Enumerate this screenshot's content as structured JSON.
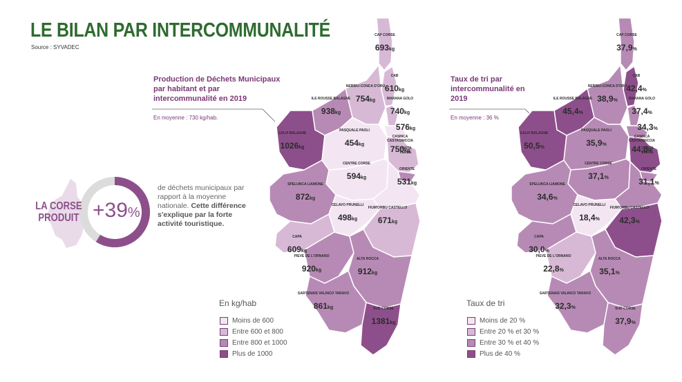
{
  "title": "LE BILAN PAR INTERCOMMUNALITÉ",
  "source": "Source : SYVADEC",
  "map_left": {
    "title": "Production de Déchets Municipaux par habitant et par intercommunalité en 2019",
    "average": "En moyenne : 730 kg/hab.",
    "unit": "kg",
    "regions": [
      {
        "name": "CAP CORSE",
        "value": "693"
      },
      {
        "name": "CAB",
        "value": "610"
      },
      {
        "name": "NEBBIU-CONCA D'ORU",
        "value": "754"
      },
      {
        "name": "MARANA GOLO",
        "value": "740"
      },
      {
        "name": "",
        "value": "576"
      },
      {
        "name": "ILE ROUSSE BALAGNE",
        "value": "938"
      },
      {
        "name": "CALVI BALAGNE",
        "value": "1026"
      },
      {
        "name": "PASQUALE PAOLI",
        "value": "454"
      },
      {
        "name": "CASINCA CASTAGNICCIA",
        "value": "750"
      },
      {
        "name": "COSTA VERDE",
        "value": ""
      },
      {
        "name": "CENTRE CORSE",
        "value": "594"
      },
      {
        "name": "ORIENTE",
        "value": "531"
      },
      {
        "name": "SPELUNCA LIAMONE",
        "value": "872"
      },
      {
        "name": "CELAVO PRUNELLI",
        "value": "498"
      },
      {
        "name": "FIUM'ORBU CASTELLO",
        "value": "671"
      },
      {
        "name": "CAPA",
        "value": "609"
      },
      {
        "name": "PIEVE DE L'ORNANO",
        "value": "920"
      },
      {
        "name": "ALTA ROCCA",
        "value": "912"
      },
      {
        "name": "SARTENAIS VALINCO TARAVO",
        "value": "861"
      },
      {
        "name": "SUD CORSE",
        "value": "1381"
      }
    ],
    "legend_title": "En kg/hab",
    "legend": [
      "Moins de 600",
      "Entre 600 et 800",
      "Entre 800 et 1000",
      "Plus de 1000"
    ]
  },
  "map_right": {
    "title": "Taux de tri par intercommunalité en 2019",
    "average": "En moyenne : 36 %",
    "unit": "%",
    "regions": [
      {
        "name": "CAP CORSE",
        "value": "37,9"
      },
      {
        "name": "CAB",
        "value": "42,4"
      },
      {
        "name": "NEBBIU-CONCA D'ORU",
        "value": "38,9"
      },
      {
        "name": "MARANA GOLO",
        "value": "37,4"
      },
      {
        "name": "",
        "value": "34,3"
      },
      {
        "name": "ILE ROUSSE BALAGNE",
        "value": "45,4"
      },
      {
        "name": "CALVI BALAGNE",
        "value": "50,5"
      },
      {
        "name": "PASQUALE PAOLI",
        "value": "35,9"
      },
      {
        "name": "CASINCA CASTAGNICCIA",
        "value": "44,8"
      },
      {
        "name": "COSTA VERDE",
        "value": ""
      },
      {
        "name": "CENTRE CORSE",
        "value": "37,1"
      },
      {
        "name": "ORIENTE",
        "value": "31,1"
      },
      {
        "name": "SPELUNCA LIAMONE",
        "value": "34,6"
      },
      {
        "name": "CELAVO PRUNELLI",
        "value": "18,4"
      },
      {
        "name": "FIUM'ORBU CASTELLO",
        "value": "42,3"
      },
      {
        "name": "CAPA",
        "value": "30,0"
      },
      {
        "name": "PIEVE DE L'ORNANO",
        "value": "22,8"
      },
      {
        "name": "ALTA ROCCA",
        "value": "35,1"
      },
      {
        "name": "SARTENAIS VALINCO TARAVO",
        "value": "32,3"
      },
      {
        "name": "SUD CORSE",
        "value": "37,9"
      }
    ],
    "legend_title": "Taux de tri",
    "legend": [
      "Moins de 20 %",
      "Entre 20 % et 30 %",
      "Entre 30 % et 40 %",
      "Plus de 40 %"
    ]
  },
  "highlight": {
    "line1": "LA CORSE",
    "line2": "PRODUIT",
    "value": "+39",
    "unit": "%",
    "text_plain": "de déchets municipaux par rapport à la moyenne nationale.",
    "text_bold": "Cette différence s'explique par la forte activité touristique."
  },
  "colors": {
    "title": "#2e6b2f",
    "accent": "#7a3877",
    "level1": "#f3e6f2",
    "level2": "#d7b9d6",
    "level3": "#b78ab5",
    "level4": "#8d4f8b"
  }
}
